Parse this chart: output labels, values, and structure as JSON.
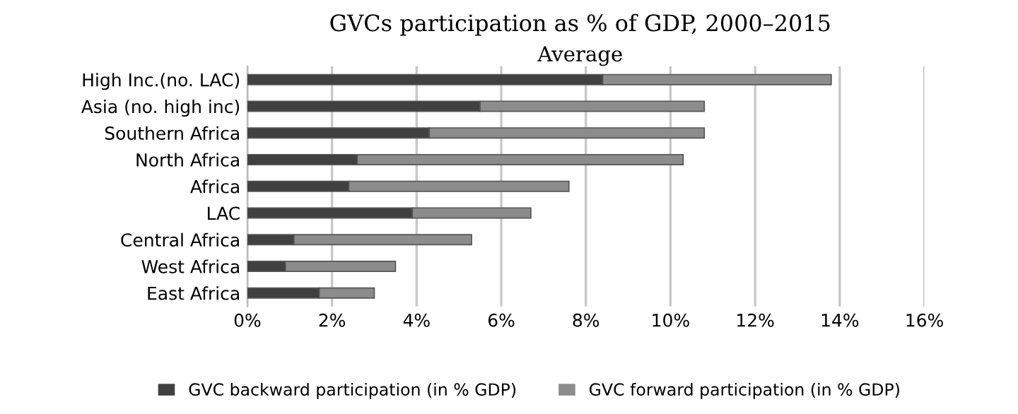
{
  "chart_data": {
    "type": "bar",
    "orientation": "horizontal",
    "stacked": true,
    "title": "GVCs participation as % of GDP, 2000–2015",
    "subtitle": "Average",
    "categories": [
      "High Inc.(no. LAC)",
      "Asia (no. high inc)",
      "Southern Africa",
      "North Africa",
      "Africa",
      "LAC",
      "Central Africa",
      "West Africa",
      "East Africa"
    ],
    "series": [
      {
        "name": "GVC backward participation (in % GDP)",
        "color": "#404040",
        "values": [
          8.4,
          5.5,
          4.3,
          2.6,
          2.4,
          3.9,
          1.1,
          0.9,
          1.7
        ]
      },
      {
        "name": "GVC forward participation (in % GDP)",
        "color": "#8c8c8c",
        "values": [
          5.4,
          5.3,
          6.5,
          7.7,
          5.2,
          2.8,
          4.2,
          2.6,
          1.3
        ]
      }
    ],
    "xlim": [
      0,
      16
    ],
    "xticks": [
      {
        "value": 0,
        "label": "0%"
      },
      {
        "value": 2,
        "label": "2%"
      },
      {
        "value": 4,
        "label": "4%"
      },
      {
        "value": 6,
        "label": "6%"
      },
      {
        "value": 8,
        "label": "8%"
      },
      {
        "value": 10,
        "label": "10%"
      },
      {
        "value": 12,
        "label": "12%"
      },
      {
        "value": 14,
        "label": "14%"
      },
      {
        "value": 16,
        "label": "16%"
      }
    ],
    "grid": "x",
    "legend": "bottom"
  }
}
